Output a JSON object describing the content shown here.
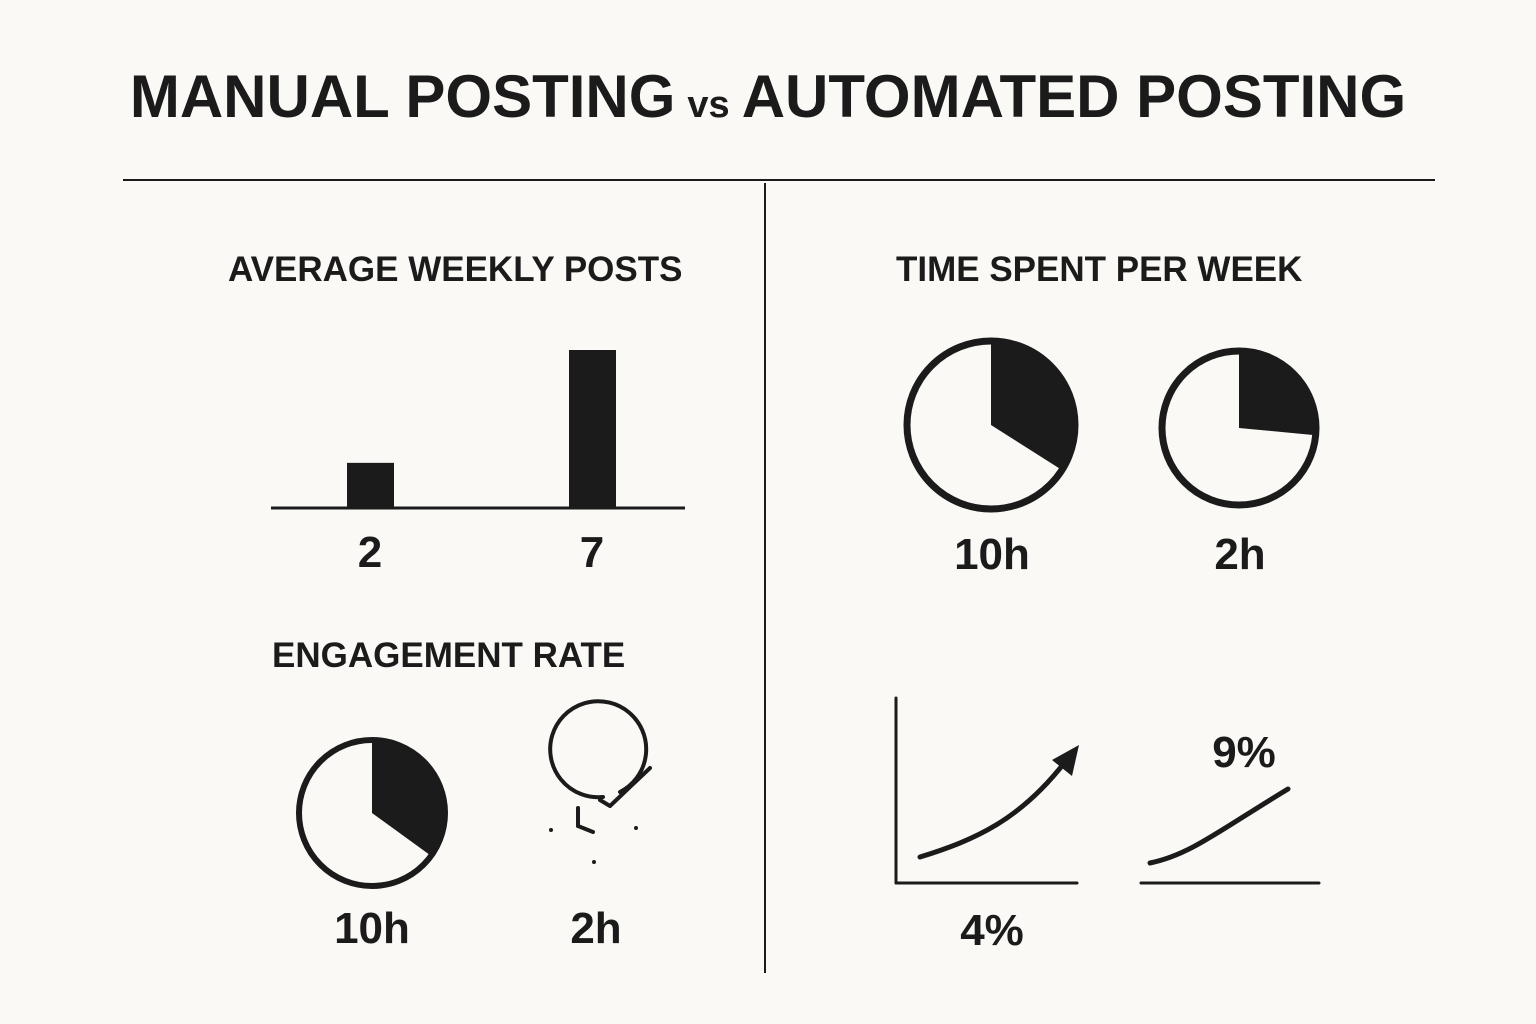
{
  "title": {
    "left": "MANUAL POSTING",
    "vs": "vs",
    "right": "AUTOMATED POSTING"
  },
  "colors": {
    "ink": "#1b1b1b",
    "background": "#faf9f6"
  },
  "chart_data": [
    {
      "type": "bar",
      "title": "AVERAGE WEEKLY POSTS",
      "categories": [
        "",
        ""
      ],
      "values": [
        2,
        7
      ],
      "labels": [
        "2",
        "7"
      ],
      "xlabel": "",
      "ylabel": ""
    },
    {
      "type": "pie",
      "title": "TIME SPENT PER WEEK",
      "items": [
        {
          "label": "10h",
          "fraction": 0.34
        },
        {
          "label": "2h",
          "fraction": 0.265
        }
      ]
    },
    {
      "type": "pie",
      "title": "ENGAGEMENT RATE",
      "items": [
        {
          "label": "10h",
          "fraction": 0.35,
          "icon": "pie-icon"
        },
        {
          "label": "2h",
          "icon": "clock-check-icon"
        }
      ]
    },
    {
      "type": "line",
      "title": "",
      "items": [
        {
          "label": "4%",
          "icon": "trend-up-arrow-icon"
        },
        {
          "label": "9%",
          "icon": "trend-line-icon"
        }
      ]
    }
  ]
}
